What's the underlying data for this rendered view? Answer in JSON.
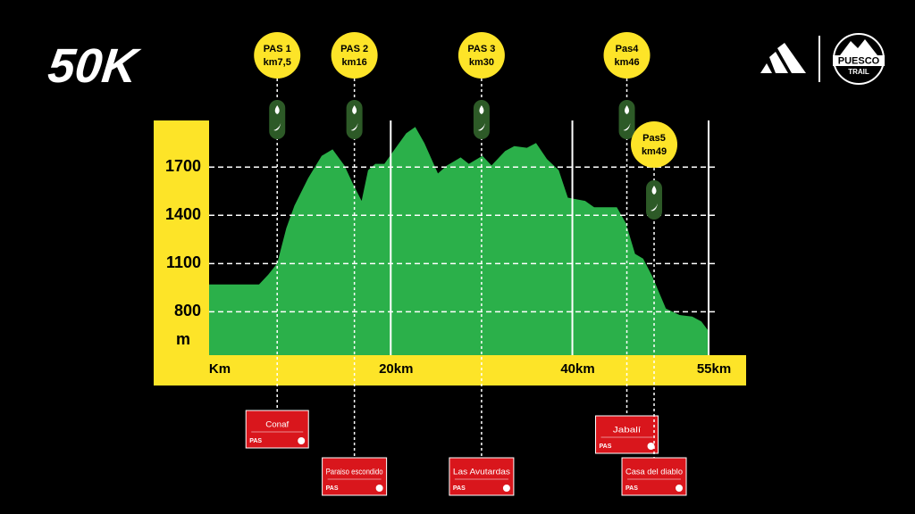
{
  "chart_data": {
    "type": "area",
    "title": "50K",
    "x_label": "Km",
    "y_label": "m",
    "color": "#2bb04a",
    "x": [
      0,
      5.5,
      6.5,
      7.5,
      8.5,
      9.4,
      10.9,
      12.4,
      13.6,
      14.9,
      15.8,
      16.8,
      17.5,
      18.3,
      19.3,
      20.3,
      21.7,
      22.7,
      23.7,
      25.2,
      26.2,
      27.7,
      28.6,
      30.1,
      31.1,
      32.6,
      33.6,
      35.0,
      36.0,
      37.2,
      38.5,
      39.5,
      41.4,
      42.4,
      44.9,
      45.9,
      46.9,
      47.8,
      48.8,
      50.3,
      51.8,
      53.2,
      54.2,
      55
    ],
    "values": [
      970,
      970,
      1030,
      1100,
      1320,
      1460,
      1630,
      1770,
      1810,
      1710,
      1600,
      1490,
      1680,
      1720,
      1720,
      1800,
      1910,
      1950,
      1850,
      1660,
      1710,
      1760,
      1720,
      1770,
      1710,
      1800,
      1830,
      1820,
      1850,
      1750,
      1680,
      1510,
      1490,
      1450,
      1450,
      1350,
      1160,
      1130,
      1020,
      820,
      780,
      770,
      740,
      680
    ],
    "xlim": [
      0,
      55
    ],
    "ylim": [
      530,
      1990
    ],
    "xticks": [
      {
        "value": 20,
        "label": "20km"
      },
      {
        "value": 40,
        "label": "40km"
      },
      {
        "value": 55,
        "label": "55km"
      }
    ],
    "yticks": [
      800,
      1100,
      1400,
      1700
    ],
    "grid": true,
    "sign_tag": "PAS",
    "stations": [
      {
        "name": "PAS 1",
        "km_label": "km7,5",
        "km": 7.5,
        "sign": "Conaf"
      },
      {
        "name": "PAS 2",
        "km_label": "km16",
        "km": 16,
        "sign": "Paraiso escondido"
      },
      {
        "name": "PAS 3",
        "km_label": "km30",
        "km": 30,
        "sign": "Las Avutardas"
      },
      {
        "name": "Pas4",
        "km_label": "km46",
        "km": 46,
        "sign": "Jabalí"
      },
      {
        "name": "Pas5",
        "km_label": "km49",
        "km": 49,
        "sign": "Casa del diablo"
      }
    ],
    "logo": {
      "line1": "PUESCO",
      "line2": "TRAIL"
    }
  }
}
